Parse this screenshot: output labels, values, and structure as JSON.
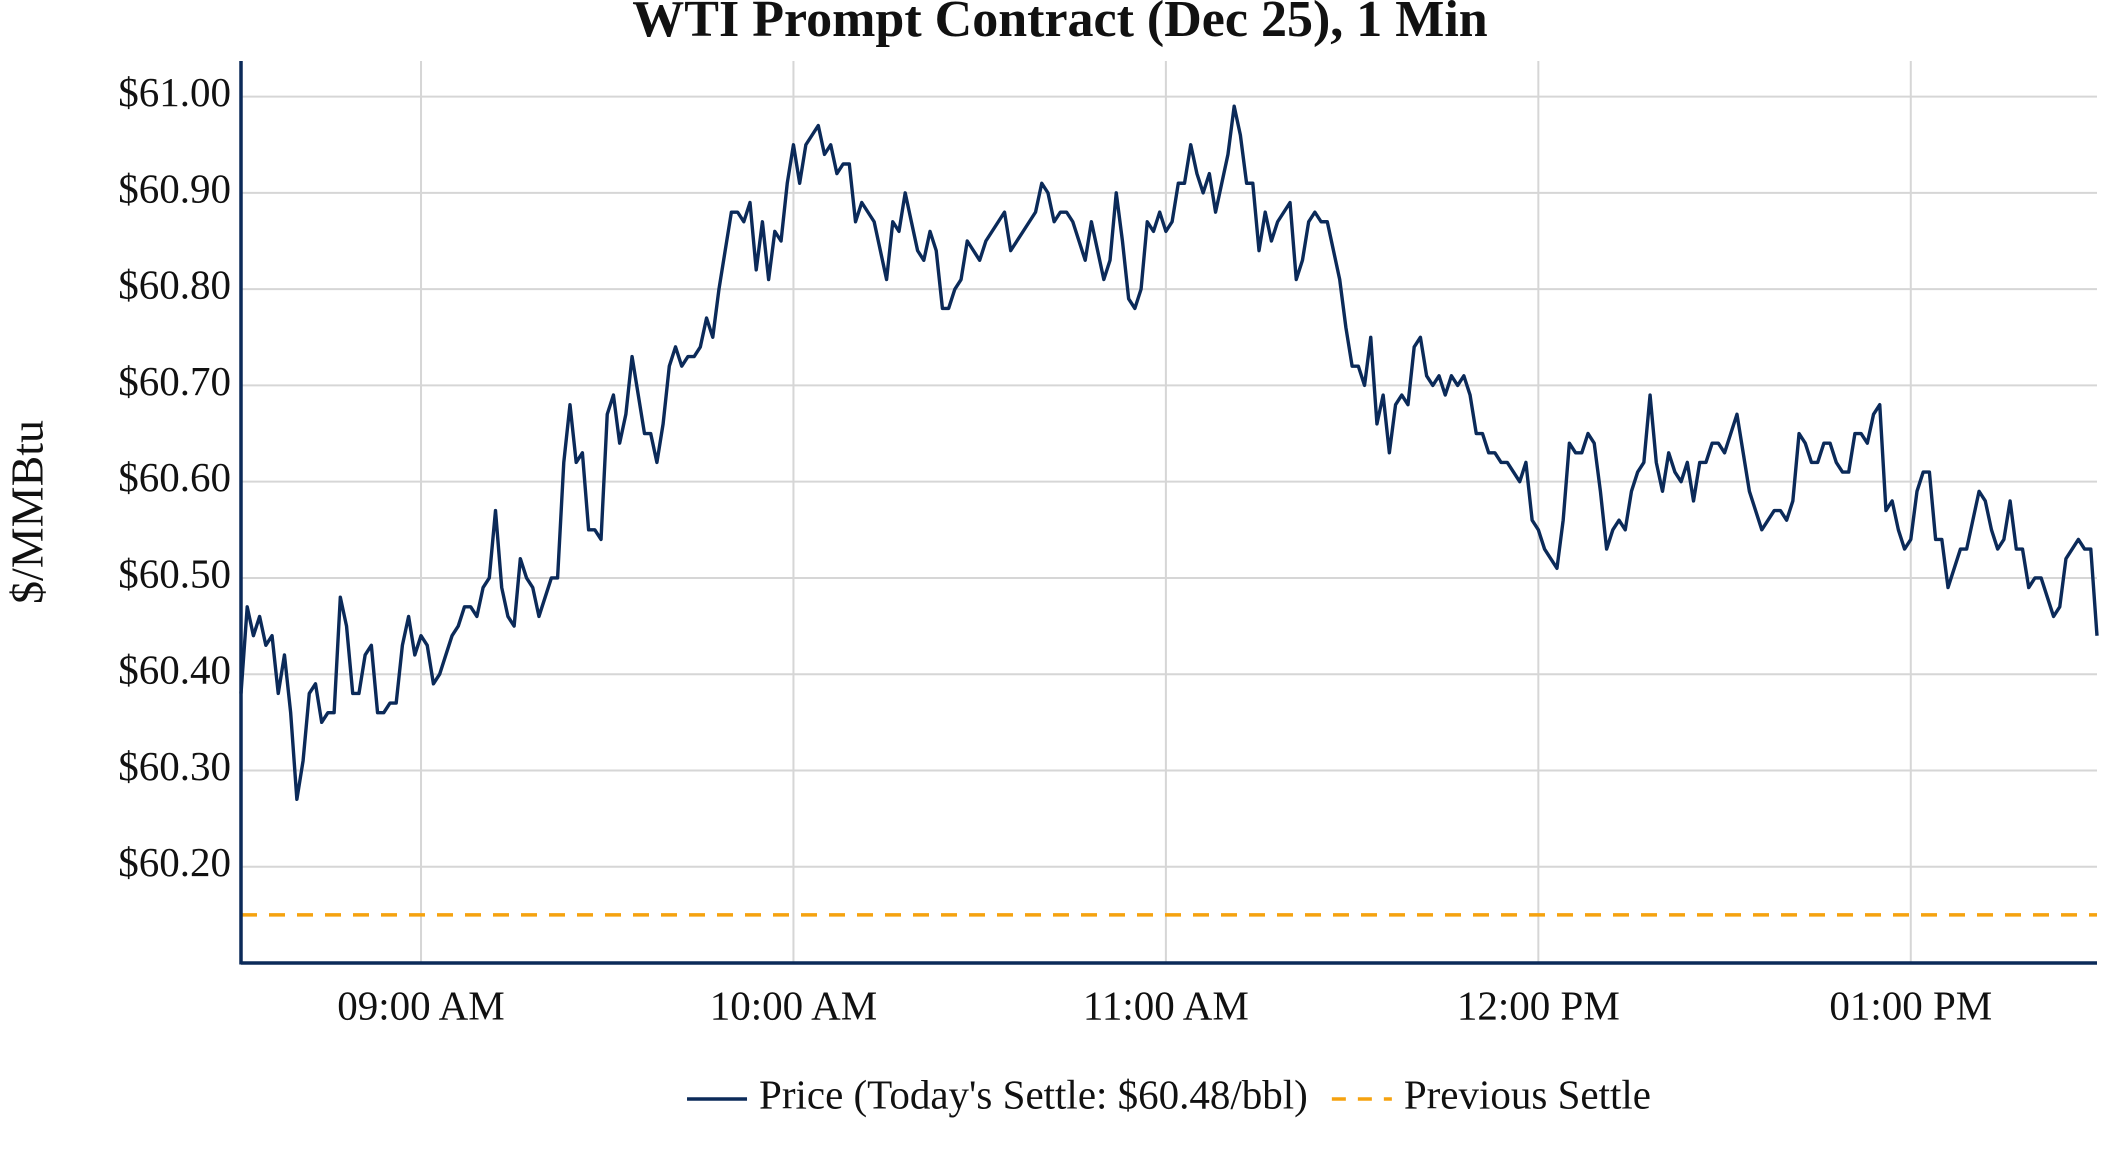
{
  "chart_data": {
    "type": "line",
    "title": "WTI Prompt Contract (Dec 25), 1 Min",
    "y_label": "$/MMBtu",
    "x": [
      "08:31",
      "08:32",
      "08:33",
      "08:34",
      "08:35",
      "08:36",
      "08:37",
      "08:38",
      "08:39",
      "08:40",
      "08:41",
      "08:42",
      "08:43",
      "08:44",
      "08:45",
      "08:46",
      "08:47",
      "08:48",
      "08:49",
      "08:50",
      "08:51",
      "08:52",
      "08:53",
      "08:54",
      "08:55",
      "08:56",
      "08:57",
      "08:58",
      "08:59",
      "09:00",
      "09:01",
      "09:02",
      "09:03",
      "09:04",
      "09:05",
      "09:06",
      "09:07",
      "09:08",
      "09:09",
      "09:10",
      "09:11",
      "09:12",
      "09:13",
      "09:14",
      "09:15",
      "09:16",
      "09:17",
      "09:18",
      "09:19",
      "09:20",
      "09:21",
      "09:22",
      "09:23",
      "09:24",
      "09:25",
      "09:26",
      "09:27",
      "09:28",
      "09:29",
      "09:30",
      "09:31",
      "09:32",
      "09:33",
      "09:34",
      "09:35",
      "09:36",
      "09:37",
      "09:38",
      "09:39",
      "09:40",
      "09:41",
      "09:42",
      "09:43",
      "09:44",
      "09:45",
      "09:46",
      "09:47",
      "09:48",
      "09:49",
      "09:50",
      "09:51",
      "09:52",
      "09:53",
      "09:54",
      "09:55",
      "09:56",
      "09:57",
      "09:58",
      "09:59",
      "10:00",
      "10:01",
      "10:02",
      "10:03",
      "10:04",
      "10:05",
      "10:06",
      "10:07",
      "10:08",
      "10:09",
      "10:10",
      "10:11",
      "10:12",
      "10:13",
      "10:14",
      "10:15",
      "10:16",
      "10:17",
      "10:18",
      "10:19",
      "10:20",
      "10:21",
      "10:22",
      "10:23",
      "10:24",
      "10:25",
      "10:26",
      "10:27",
      "10:28",
      "10:29",
      "10:30",
      "10:31",
      "10:32",
      "10:33",
      "10:34",
      "10:35",
      "10:36",
      "10:37",
      "10:38",
      "10:39",
      "10:40",
      "10:41",
      "10:42",
      "10:43",
      "10:44",
      "10:45",
      "10:46",
      "10:47",
      "10:48",
      "10:49",
      "10:50",
      "10:51",
      "10:52",
      "10:53",
      "10:54",
      "10:55",
      "10:56",
      "10:57",
      "10:58",
      "10:59",
      "11:00",
      "11:01",
      "11:02",
      "11:03",
      "11:04",
      "11:05",
      "11:06",
      "11:07",
      "11:08",
      "11:09",
      "11:10",
      "11:11",
      "11:12",
      "11:13",
      "11:14",
      "11:15",
      "11:16",
      "11:17",
      "11:18",
      "11:19",
      "11:20",
      "11:21",
      "11:22",
      "11:23",
      "11:24",
      "11:25",
      "11:26",
      "11:27",
      "11:28",
      "11:29",
      "11:30",
      "11:31",
      "11:32",
      "11:33",
      "11:34",
      "11:35",
      "11:36",
      "11:37",
      "11:38",
      "11:39",
      "11:40",
      "11:41",
      "11:42",
      "11:43",
      "11:44",
      "11:45",
      "11:46",
      "11:47",
      "11:48",
      "11:49",
      "11:50",
      "11:51",
      "11:52",
      "11:53",
      "11:54",
      "11:55",
      "11:56",
      "11:57",
      "11:58",
      "11:59",
      "12:00",
      "12:01",
      "12:02",
      "12:03",
      "12:04",
      "12:05",
      "12:06",
      "12:07",
      "12:08",
      "12:09",
      "12:10",
      "12:11",
      "12:12",
      "12:13",
      "12:14",
      "12:15",
      "12:16",
      "12:17",
      "12:18",
      "12:19",
      "12:20",
      "12:21",
      "12:22",
      "12:23",
      "12:24",
      "12:25",
      "12:26",
      "12:27",
      "12:28",
      "12:29",
      "12:30",
      "12:31",
      "12:32",
      "12:33",
      "12:34",
      "12:35",
      "12:36",
      "12:37",
      "12:38",
      "12:39",
      "12:40",
      "12:41",
      "12:42",
      "12:43",
      "12:44",
      "12:45",
      "12:46",
      "12:47",
      "12:48",
      "12:49",
      "12:50",
      "12:51",
      "12:52",
      "12:53",
      "12:54",
      "12:55",
      "12:56",
      "12:57",
      "12:58",
      "12:59",
      "13:00",
      "13:01",
      "13:02",
      "13:03",
      "13:04",
      "13:05",
      "13:06",
      "13:07",
      "13:08",
      "13:09",
      "13:10",
      "13:11",
      "13:12",
      "13:13",
      "13:14",
      "13:15",
      "13:16",
      "13:17",
      "13:18",
      "13:19",
      "13:20",
      "13:21",
      "13:22",
      "13:23",
      "13:24",
      "13:25",
      "13:26",
      "13:27",
      "13:28",
      "13:29",
      "13:30"
    ],
    "series": [
      {
        "name": "Price (Today's Settle: $60.48/bbl)",
        "color": "#0b2a59",
        "values": [
          60.38,
          60.47,
          60.44,
          60.46,
          60.43,
          60.44,
          60.38,
          60.42,
          60.36,
          60.27,
          60.31,
          60.38,
          60.39,
          60.35,
          60.36,
          60.36,
          60.48,
          60.45,
          60.38,
          60.38,
          60.42,
          60.43,
          60.36,
          60.36,
          60.37,
          60.37,
          60.43,
          60.46,
          60.42,
          60.44,
          60.43,
          60.39,
          60.4,
          60.42,
          60.44,
          60.45,
          60.47,
          60.47,
          60.46,
          60.49,
          60.5,
          60.57,
          60.49,
          60.46,
          60.45,
          60.52,
          60.5,
          60.49,
          60.46,
          60.48,
          60.5,
          60.5,
          60.62,
          60.68,
          60.62,
          60.63,
          60.55,
          60.55,
          60.54,
          60.67,
          60.69,
          60.64,
          60.67,
          60.73,
          60.69,
          60.65,
          60.65,
          60.62,
          60.66,
          60.72,
          60.74,
          60.72,
          60.73,
          60.73,
          60.74,
          60.77,
          60.75,
          60.8,
          60.84,
          60.88,
          60.88,
          60.87,
          60.89,
          60.82,
          60.87,
          60.81,
          60.86,
          60.85,
          60.91,
          60.95,
          60.91,
          60.95,
          60.96,
          60.97,
          60.94,
          60.95,
          60.92,
          60.93,
          60.93,
          60.87,
          60.89,
          60.88,
          60.87,
          60.84,
          60.81,
          60.87,
          60.86,
          60.9,
          60.87,
          60.84,
          60.83,
          60.86,
          60.84,
          60.78,
          60.78,
          60.8,
          60.81,
          60.85,
          60.84,
          60.83,
          60.85,
          60.86,
          60.87,
          60.88,
          60.84,
          60.85,
          60.86,
          60.87,
          60.88,
          60.91,
          60.9,
          60.87,
          60.88,
          60.88,
          60.87,
          60.85,
          60.83,
          60.87,
          60.84,
          60.81,
          60.83,
          60.9,
          60.85,
          60.79,
          60.78,
          60.8,
          60.87,
          60.86,
          60.88,
          60.86,
          60.87,
          60.91,
          60.91,
          60.95,
          60.92,
          60.9,
          60.92,
          60.88,
          60.91,
          60.94,
          60.99,
          60.96,
          60.91,
          60.91,
          60.84,
          60.88,
          60.85,
          60.87,
          60.88,
          60.89,
          60.81,
          60.83,
          60.87,
          60.88,
          60.87,
          60.87,
          60.84,
          60.81,
          60.76,
          60.72,
          60.72,
          60.7,
          60.75,
          60.66,
          60.69,
          60.63,
          60.68,
          60.69,
          60.68,
          60.74,
          60.75,
          60.71,
          60.7,
          60.71,
          60.69,
          60.71,
          60.7,
          60.71,
          60.69,
          60.65,
          60.65,
          60.63,
          60.63,
          60.62,
          60.62,
          60.61,
          60.6,
          60.62,
          60.56,
          60.55,
          60.53,
          60.52,
          60.51,
          60.56,
          60.64,
          60.63,
          60.63,
          60.65,
          60.64,
          60.59,
          60.53,
          60.55,
          60.56,
          60.55,
          60.59,
          60.61,
          60.62,
          60.69,
          60.62,
          60.59,
          60.63,
          60.61,
          60.6,
          60.62,
          60.58,
          60.62,
          60.62,
          60.64,
          60.64,
          60.63,
          60.65,
          60.67,
          60.63,
          60.59,
          60.57,
          60.55,
          60.56,
          60.57,
          60.57,
          60.56,
          60.58,
          60.65,
          60.64,
          60.62,
          60.62,
          60.64,
          60.64,
          60.62,
          60.61,
          60.61,
          60.65,
          60.65,
          60.64,
          60.67,
          60.68,
          60.57,
          60.58,
          60.55,
          60.53,
          60.54,
          60.59,
          60.61,
          60.61,
          60.54,
          60.54,
          60.49,
          60.51,
          60.53,
          60.53,
          60.56,
          60.59,
          60.58,
          60.55,
          60.53,
          60.54,
          60.58,
          60.53,
          60.53,
          60.49,
          60.5,
          60.5,
          60.48,
          60.46,
          60.47,
          60.52,
          60.53,
          60.54,
          60.53,
          60.53,
          60.44
        ]
      }
    ],
    "hlines": [
      {
        "name": "Previous Settle",
        "value": 60.15,
        "color": "#f5a20f",
        "style": "dashed"
      }
    ],
    "xlim": [
      "08:31",
      "13:30"
    ],
    "xticks": [
      {
        "value": "09:00",
        "label": "09:00 AM"
      },
      {
        "value": "10:00",
        "label": "10:00 AM"
      },
      {
        "value": "11:00",
        "label": "11:00 AM"
      },
      {
        "value": "12:00",
        "label": "12:00 PM"
      },
      {
        "value": "13:00",
        "label": "01:00 PM"
      }
    ],
    "ylim": [
      60.1,
      61.037
    ],
    "yticks": [
      {
        "value": 61,
        "label": "$61.00"
      },
      {
        "value": 60.9,
        "label": "$60.90"
      },
      {
        "value": 60.8,
        "label": "$60.80"
      },
      {
        "value": 60.7,
        "label": "$60.70"
      },
      {
        "value": 60.6,
        "label": "$60.60"
      },
      {
        "value": 60.5,
        "label": "$60.50"
      },
      {
        "value": 60.4,
        "label": "$60.40"
      },
      {
        "value": 60.3,
        "label": "$60.30"
      },
      {
        "value": 60.2,
        "label": "$60.20"
      }
    ],
    "grid": true,
    "legend": "bottom",
    "axis_color": "#0b2a59"
  }
}
